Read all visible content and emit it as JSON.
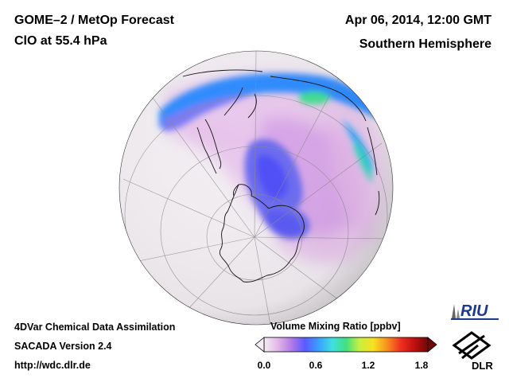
{
  "header": {
    "title_line1": "GOME–2 / MetOp Forecast",
    "title_line2": "ClO at 55.4 hPa",
    "date": "Apr 06, 2014, 12:00 GMT",
    "region": "Southern Hemisphere"
  },
  "footer": {
    "line1": "4DVar Chemical Data Assimilation",
    "line2": "SACADA Version 2.4",
    "line3": "http://wdc.dlr.de"
  },
  "colorbar": {
    "title": "Volume Mixing Ratio [ppbv]",
    "ticks": [
      "0.0",
      "0.6",
      "1.2",
      "1.8"
    ],
    "min": 0.0,
    "max": 1.8,
    "colors": [
      "#f4eef4",
      "#e0b8e6",
      "#b27ae8",
      "#5a5aff",
      "#3aa0ff",
      "#40e0e0",
      "#40e080",
      "#c8f040",
      "#f8e020",
      "#f89020",
      "#f03020",
      "#c01010",
      "#700808"
    ]
  },
  "logos": {
    "riu": "RIU",
    "dlr": "DLR"
  },
  "map": {
    "projection": "orthographic",
    "hemisphere": "south",
    "graticule": true
  }
}
